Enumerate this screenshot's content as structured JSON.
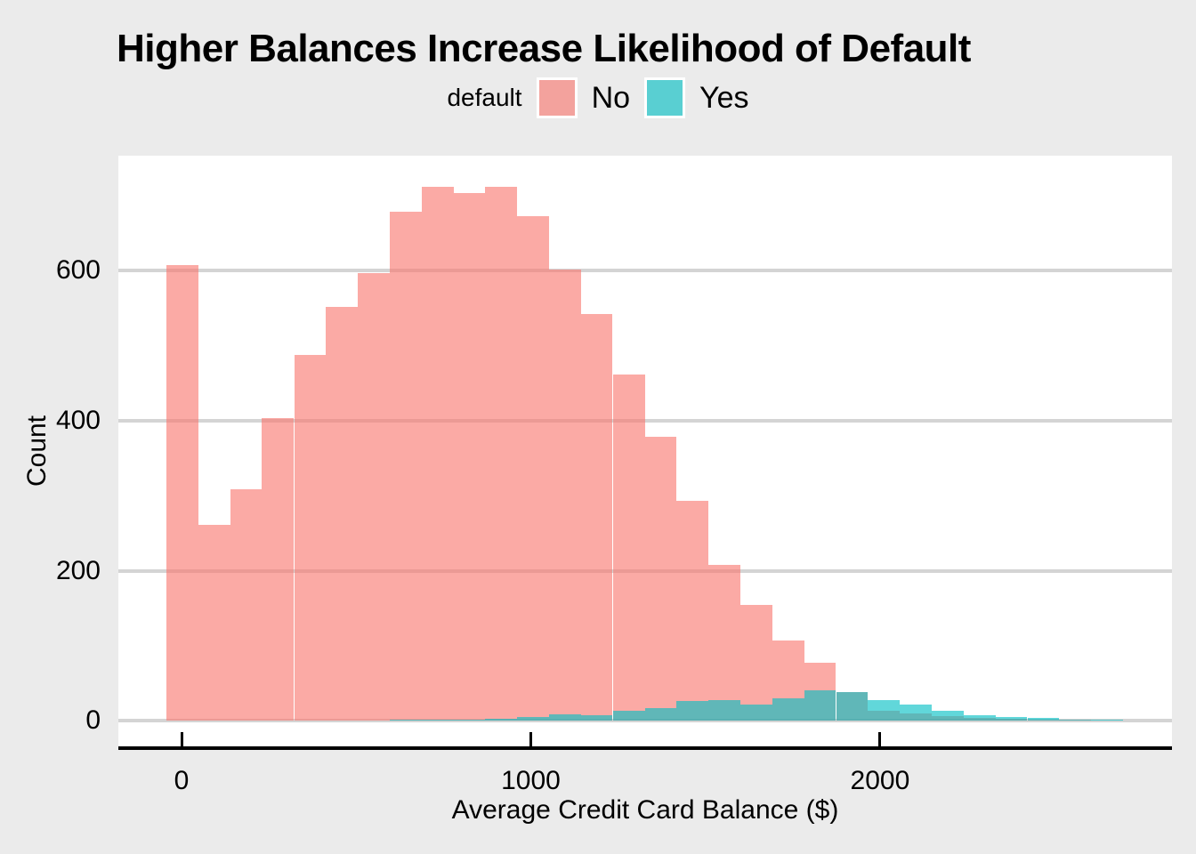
{
  "chart_data": {
    "type": "histogram",
    "title": "Higher Balances Increase Likelihood of Default",
    "legend_title": "default",
    "legend_position": "top-center",
    "xlabel": "Average Credit Card Balance ($)",
    "ylabel": "Count",
    "x_ticks": [
      0,
      1000,
      2000
    ],
    "y_ticks": [
      0,
      200,
      400,
      600
    ],
    "x_view": [
      -181,
      2836
    ],
    "y_view": [
      -34,
      753
    ],
    "grid": "horizontal-major-only",
    "binwidth": 91,
    "bin_centers": [
      2,
      94,
      185,
      276,
      368,
      459,
      550,
      642,
      733,
      824,
      915,
      1007,
      1098,
      1189,
      1281,
      1372,
      1463,
      1555,
      1646,
      1737,
      1828,
      1920,
      2011,
      2102,
      2194,
      2285,
      2376,
      2468,
      2559,
      2650
    ],
    "series": [
      {
        "name": "No",
        "base_color": "#F8766D",
        "fill": "rgba(248,118,109,0.62)",
        "values": [
          607,
          261,
          309,
          403,
          487,
          551,
          597,
          678,
          712,
          703,
          712,
          673,
          601,
          542,
          462,
          379,
          293,
          208,
          154,
          107,
          77,
          38,
          13,
          10,
          6,
          4,
          3,
          2,
          1,
          0
        ]
      },
      {
        "name": "Yes",
        "base_color": "#00BFC4",
        "fill": "rgba(0,191,196,0.62)",
        "values": [
          0,
          0,
          0,
          0,
          0,
          0,
          0,
          2,
          2,
          2,
          3,
          5,
          9,
          7,
          13,
          17,
          27,
          28,
          22,
          30,
          41,
          38,
          28,
          22,
          14,
          7,
          5,
          4,
          2,
          2
        ]
      }
    ],
    "panel_background": "#FFFFFF",
    "figure_background": "#EBEBEB",
    "gridline_color": "#D4D4D4",
    "axis_line_color": "#000000"
  }
}
